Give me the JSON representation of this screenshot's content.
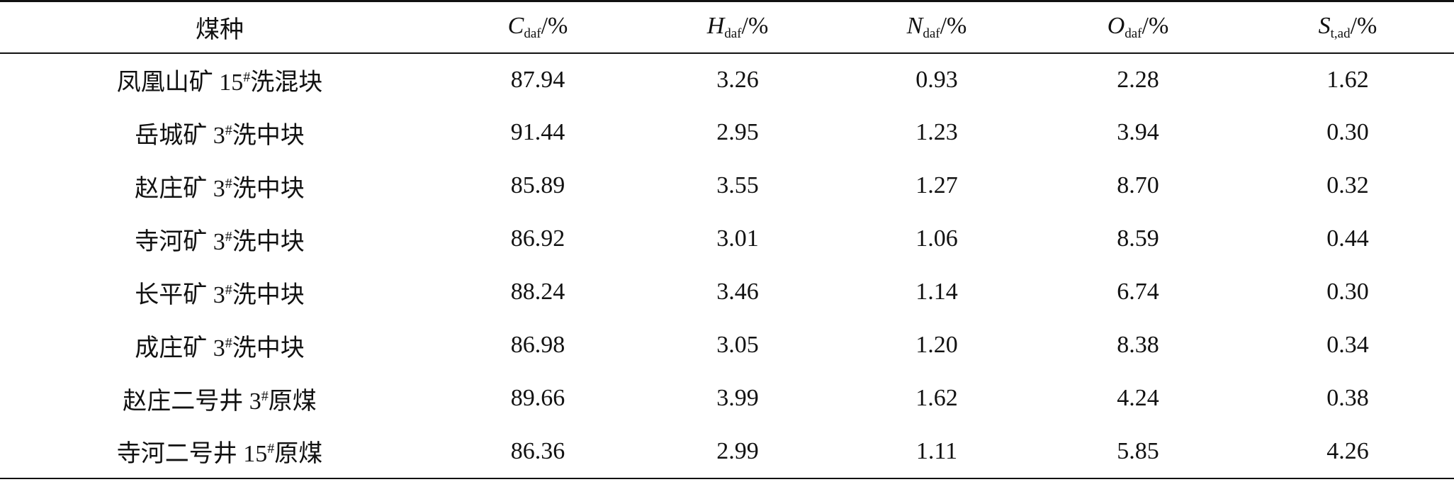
{
  "table": {
    "header": [
      {
        "text": "煤种"
      },
      {
        "symbol": "C",
        "sub": "daf",
        "unit": "/%"
      },
      {
        "symbol": "H",
        "sub": "daf",
        "unit": "/%"
      },
      {
        "symbol": "N",
        "sub": "daf",
        "unit": "/%"
      },
      {
        "symbol": "O",
        "sub": "daf",
        "unit": "/%"
      },
      {
        "symbol": "S",
        "sub": "t,ad",
        "unit": "/%"
      }
    ],
    "rows": [
      {
        "name": [
          "凤凰山矿 15",
          "#",
          "洗混块"
        ],
        "values": [
          "87.94",
          "3.26",
          "0.93",
          "2.28",
          "1.62"
        ]
      },
      {
        "name": [
          "岳城矿 3",
          "#",
          "洗中块"
        ],
        "values": [
          "91.44",
          "2.95",
          "1.23",
          "3.94",
          "0.30"
        ]
      },
      {
        "name": [
          "赵庄矿 3",
          "#",
          "洗中块"
        ],
        "values": [
          "85.89",
          "3.55",
          "1.27",
          "8.70",
          "0.32"
        ]
      },
      {
        "name": [
          "寺河矿 3",
          "#",
          "洗中块"
        ],
        "values": [
          "86.92",
          "3.01",
          "1.06",
          "8.59",
          "0.44"
        ]
      },
      {
        "name": [
          "长平矿 3",
          "#",
          "洗中块"
        ],
        "values": [
          "88.24",
          "3.46",
          "1.14",
          "6.74",
          "0.30"
        ]
      },
      {
        "name": [
          "成庄矿 3",
          "#",
          "洗中块"
        ],
        "values": [
          "86.98",
          "3.05",
          "1.20",
          "8.38",
          "0.34"
        ]
      },
      {
        "name": [
          "赵庄二号井 3",
          "#",
          "原煤"
        ],
        "values": [
          "89.66",
          "3.99",
          "1.62",
          "4.24",
          "0.38"
        ]
      },
      {
        "name": [
          "寺河二号井 15",
          "#",
          "原煤"
        ],
        "values": [
          "86.36",
          "2.99",
          "1.11",
          "5.85",
          "4.26"
        ]
      }
    ]
  }
}
